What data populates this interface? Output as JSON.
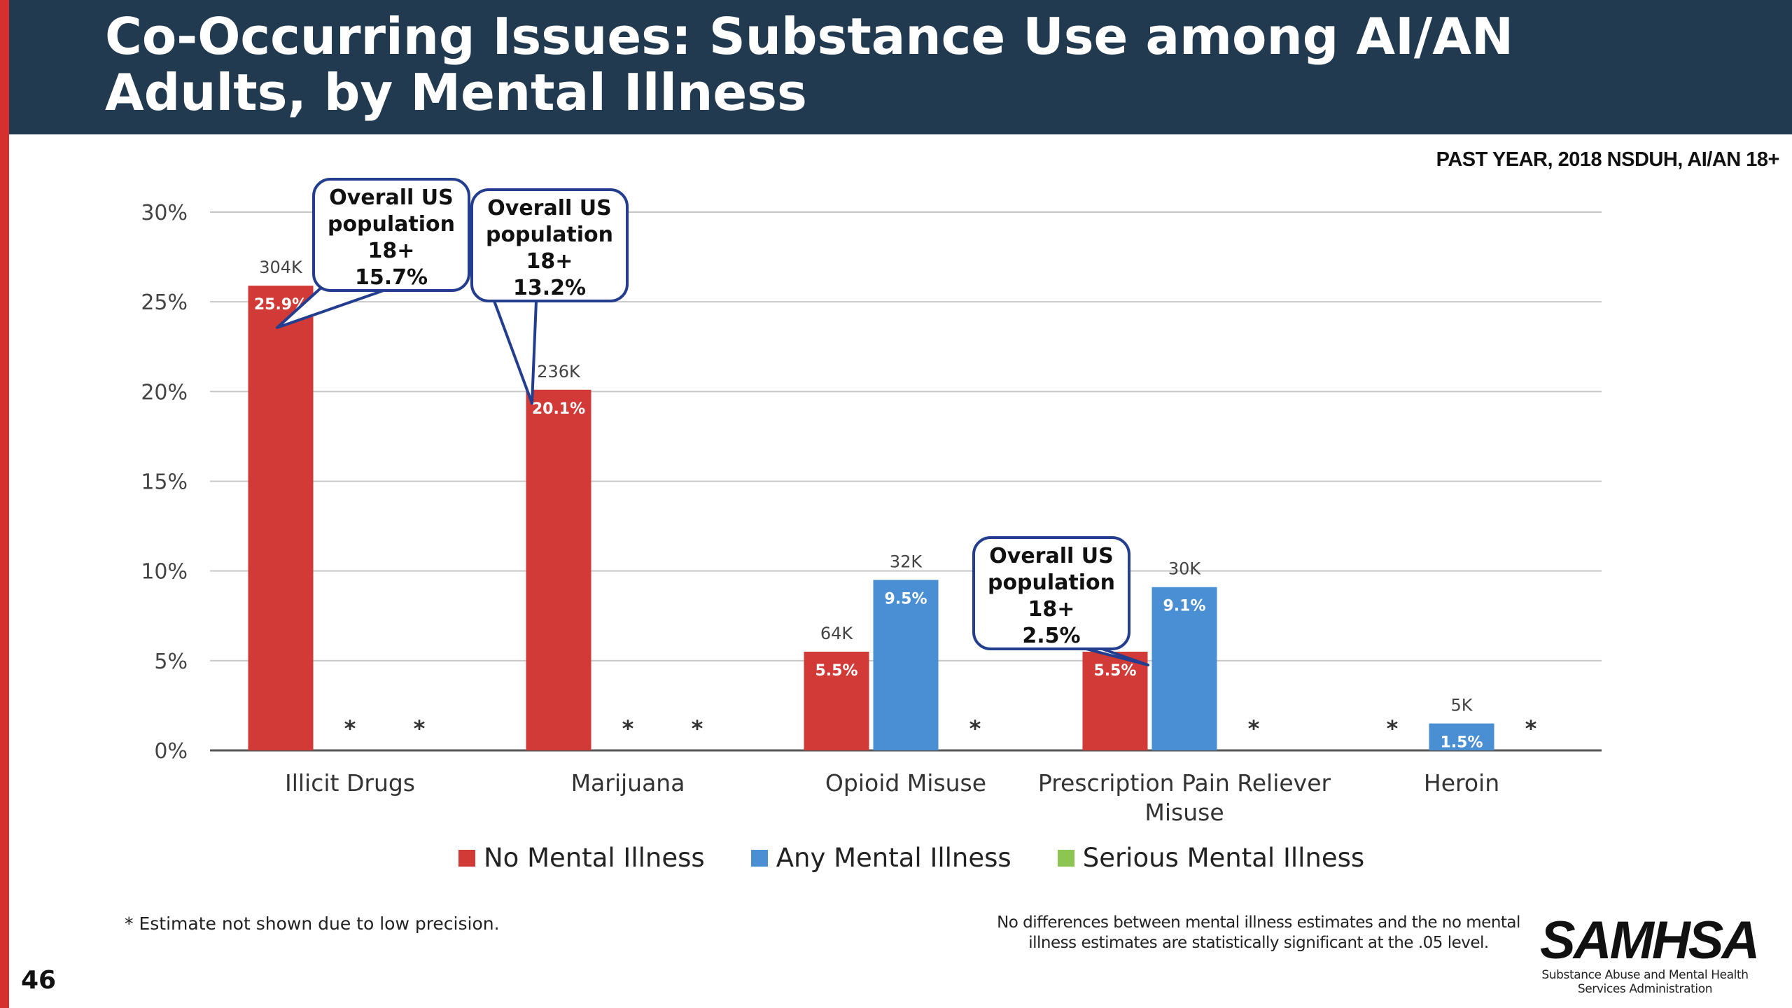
{
  "header": {
    "title": "Co-Occurring Issues: Substance Use among AI/AN Adults, by Mental Illness"
  },
  "subtitle": "PAST YEAR, 2018 NSDUH, AI/AN 18+",
  "colors": {
    "header_bg": "#223a4f",
    "no_mental_illness": "#d13a36",
    "any_mental_illness": "#4a8fd3",
    "serious_mental_illness": "#8dc553",
    "callout_border": "#243e8f"
  },
  "chart_data": {
    "type": "bar",
    "categories": [
      "Illicit Drugs",
      "Marijuana",
      "Opioid Misuse",
      "Prescription Pain Reliever Misuse",
      "Heroin"
    ],
    "ylim": [
      0,
      30
    ],
    "yticks": [
      "0%",
      "5%",
      "10%",
      "15%",
      "20%",
      "25%",
      "30%"
    ],
    "grid": true,
    "legend_position": "bottom",
    "series": [
      {
        "name": "No Mental Illness",
        "values": [
          25.9,
          20.1,
          5.5,
          5.5,
          null
        ],
        "labels": [
          "25.9%",
          "20.1%",
          "5.5%",
          "5.5%",
          "*"
        ],
        "counts": [
          "304K",
          "236K",
          "64K",
          "",
          ""
        ]
      },
      {
        "name": "Any Mental Illness",
        "values": [
          null,
          null,
          9.5,
          9.1,
          1.5
        ],
        "labels": [
          "*",
          "*",
          "9.5%",
          "9.1%",
          "1.5%"
        ],
        "counts": [
          "",
          "",
          "32K",
          "30K",
          "5K"
        ]
      },
      {
        "name": "Serious Mental Illness",
        "values": [
          null,
          null,
          null,
          null,
          null
        ],
        "labels": [
          "*",
          "*",
          "*",
          "*",
          "*"
        ],
        "counts": [
          "",
          "",
          "",
          "",
          ""
        ]
      }
    ],
    "annotations": [
      {
        "lines": [
          "Overall US",
          "population",
          "18+",
          "15.7%"
        ],
        "category": "Illicit Drugs"
      },
      {
        "lines": [
          "Overall US",
          "population",
          "18+",
          "13.2%"
        ],
        "category": "Marijuana"
      },
      {
        "lines": [
          "Overall US",
          "population",
          "18+",
          "2.5%"
        ],
        "category": "Prescription Pain Reliever Misuse"
      }
    ]
  },
  "footnote": "* Estimate not shown due to low precision.",
  "significance_note": "No differences between mental illness estimates and the no mental illness estimates are statistically significant at the .05 level.",
  "logo": {
    "name": "SAMHSA",
    "tagline": "Substance Abuse and Mental Health Services Administration"
  },
  "page_number": "46"
}
